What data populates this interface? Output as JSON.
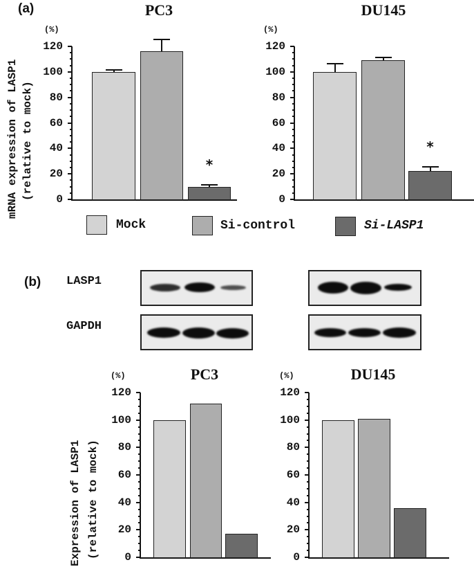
{
  "figure": {
    "panel_a_label": "(a)",
    "panel_b_label": "(b)",
    "unit_label": "(%)",
    "y_ticks": [
      "120",
      "100",
      "80",
      "60",
      "40",
      "20",
      "0"
    ],
    "panel_a_ylabel_line1": "mRNA expression of LASP1",
    "panel_a_ylabel_line2": "(relative to mock)",
    "panel_b_ylabel_line1": "Expression of LASP1",
    "panel_b_ylabel_line2": "(relative to mock)",
    "significance_marker": "*",
    "legend": [
      {
        "label": "Mock",
        "color": "#d3d3d3",
        "italic": false
      },
      {
        "label": "Si-control",
        "color": "#adadad",
        "italic": false
      },
      {
        "label": "Si-LASP1",
        "color": "#6b6b6b",
        "italic": true
      }
    ],
    "blot_labels": [
      "LASP1",
      "GAPDH"
    ],
    "titles": {
      "pc3": "PC3",
      "du145": "DU145"
    }
  },
  "chart_data": [
    {
      "type": "bar",
      "title": "PC3",
      "panel": "(a)",
      "ylabel": "mRNA expression of LASP1 (relative to mock) (%)",
      "xlabel": "",
      "categories": [
        "Mock",
        "Si-control",
        "Si-LASP1"
      ],
      "values": [
        100,
        116,
        10
      ],
      "error_upper": [
        102,
        126,
        12
      ],
      "significant": [
        false,
        false,
        true
      ],
      "ylim": [
        0,
        120
      ],
      "yticks": [
        0,
        20,
        40,
        60,
        80,
        100,
        120
      ],
      "colors": [
        "#d3d3d3",
        "#adadad",
        "#6b6b6b"
      ]
    },
    {
      "type": "bar",
      "title": "DU145",
      "panel": "(a)",
      "ylabel": "mRNA expression of LASP1 (relative to mock) (%)",
      "xlabel": "",
      "categories": [
        "Mock",
        "Si-control",
        "Si-LASP1"
      ],
      "values": [
        100,
        109,
        22
      ],
      "error_upper": [
        107,
        112,
        26
      ],
      "significant": [
        false,
        false,
        true
      ],
      "ylim": [
        0,
        120
      ],
      "yticks": [
        0,
        20,
        40,
        60,
        80,
        100,
        120
      ],
      "colors": [
        "#d3d3d3",
        "#adadad",
        "#6b6b6b"
      ]
    },
    {
      "type": "bar",
      "title": "PC3",
      "panel": "(b)",
      "ylabel": "Expression of LASP1 (relative to mock) (%)",
      "xlabel": "",
      "categories": [
        "Mock",
        "Si-control",
        "Si-LASP1"
      ],
      "values": [
        100,
        112,
        17
      ],
      "ylim": [
        0,
        120
      ],
      "yticks": [
        0,
        20,
        40,
        60,
        80,
        100,
        120
      ],
      "colors": [
        "#d3d3d3",
        "#adadad",
        "#6b6b6b"
      ]
    },
    {
      "type": "bar",
      "title": "DU145",
      "panel": "(b)",
      "ylabel": "Expression of LASP1 (relative to mock) (%)",
      "xlabel": "",
      "categories": [
        "Mock",
        "Si-control",
        "Si-LASP1"
      ],
      "values": [
        100,
        101,
        36
      ],
      "ylim": [
        0,
        120
      ],
      "yticks": [
        0,
        20,
        40,
        60,
        80,
        100,
        120
      ],
      "colors": [
        "#d3d3d3",
        "#adadad",
        "#6b6b6b"
      ]
    }
  ],
  "western_blot": {
    "pc3": {
      "LASP1": [
        0.7,
        0.9,
        0.4
      ],
      "GAPDH": [
        1.0,
        1.0,
        1.0
      ]
    },
    "du145": {
      "LASP1": [
        1.0,
        1.0,
        0.75
      ],
      "GAPDH": [
        1.0,
        1.0,
        1.0
      ]
    }
  }
}
